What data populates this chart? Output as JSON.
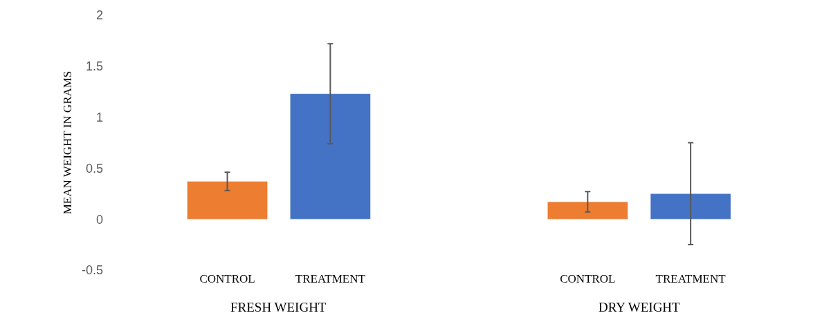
{
  "chart_data": {
    "type": "bar",
    "ylabel": "MEAN WEIGHT IN GRAMS",
    "categories": [
      "CONTROL",
      "TREATMENT",
      "CONTROL",
      "TREATMENT"
    ],
    "values": [
      0.37,
      1.23,
      0.17,
      0.25
    ],
    "colors": [
      "#ed7d31",
      "#4472c4",
      "#ed7d31",
      "#4472c4"
    ],
    "errors": [
      0.09,
      0.49,
      0.1,
      0.5
    ],
    "ylim": [
      -0.5,
      2
    ],
    "yticks": [
      -0.5,
      0,
      0.5,
      1,
      1.5,
      2
    ],
    "annotations": [
      "FRESH WEIGHT",
      "DRY WEIGHT"
    ]
  }
}
